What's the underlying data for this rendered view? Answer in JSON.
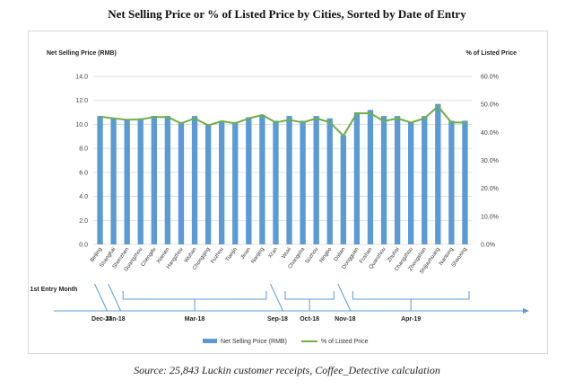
{
  "chart_data": {
    "type": "bar",
    "title": "Net Selling Price or % of Listed Price by Cities, Sorted by Date of Entry",
    "source": "Source: 25,843 Luckin customer receipts, Coffee_Detective calculation",
    "ylabel_left": "Net Selling Price (RMB)",
    "ylabel_right": "% of Listed Price",
    "ylim_left": [
      0,
      14
    ],
    "ylim_right": [
      0,
      60
    ],
    "yticks_left": [
      "0.0",
      "2.0",
      "4.0",
      "6.0",
      "8.0",
      "10.0",
      "12.0",
      "14.0"
    ],
    "yticks_right": [
      "0.0%",
      "10.0%",
      "20.0%",
      "30.0%",
      "40.0%",
      "50.0%",
      "60.0%"
    ],
    "grid": true,
    "legend_position": "bottom",
    "categories": [
      "Beijing",
      "Shanghai",
      "Shenzhen",
      "Guangzhou",
      "Chengdu",
      "Xiamen",
      "Hangzhou",
      "Wuhan",
      "Chongqing",
      "Fuzhou",
      "Tianjin",
      "Jinan",
      "Nanjing",
      "Xi'an",
      "Wuxi",
      "Changsha",
      "Suzhou",
      "Ningbo",
      "Dalian",
      "Dongguan",
      "Foshan",
      "Quanzhou",
      "Zhuhai",
      "Changzhou",
      "Zhongshan",
      "Shijiazhuang",
      "Nantong",
      "Shaoxing"
    ],
    "series": [
      {
        "name": "Net Selling Price (RMB)",
        "type": "bar",
        "axis": "left",
        "color": "#5b9bd5",
        "values": [
          10.7,
          10.5,
          10.4,
          10.5,
          10.7,
          10.7,
          10.2,
          10.7,
          10.0,
          10.3,
          10.2,
          10.6,
          10.8,
          10.3,
          10.7,
          10.3,
          10.7,
          10.5,
          9.1,
          11.0,
          11.2,
          10.7,
          10.7,
          10.2,
          10.7,
          11.7,
          10.3,
          10.3
        ]
      },
      {
        "name": "% of Listed Price",
        "type": "line",
        "axis": "right",
        "color": "#70ad47",
        "values": [
          45.6,
          45.0,
          44.5,
          44.6,
          45.5,
          45.5,
          43.2,
          45.0,
          42.5,
          44.0,
          43.2,
          45.0,
          46.2,
          43.5,
          44.5,
          43.5,
          45.0,
          43.6,
          38.8,
          46.8,
          46.8,
          44.0,
          45.0,
          43.5,
          45.0,
          49.3,
          43.5,
          43.5
        ]
      }
    ],
    "entry_timeline": {
      "label": "1st Entry Month",
      "periods": [
        {
          "label": "Dec-17",
          "from": 0,
          "to": 0
        },
        {
          "label": "Jan-18",
          "from": 1,
          "to": 1
        },
        {
          "label": "Mar-18",
          "from": 2,
          "to": 12
        },
        {
          "label": "Sep-18",
          "from": 13,
          "to": 13
        },
        {
          "label": "Oct-18",
          "from": 14,
          "to": 17
        },
        {
          "label": "Nov-18",
          "from": 18,
          "to": 18
        },
        {
          "label": "Apr-19",
          "from": 19,
          "to": 27
        }
      ]
    }
  }
}
